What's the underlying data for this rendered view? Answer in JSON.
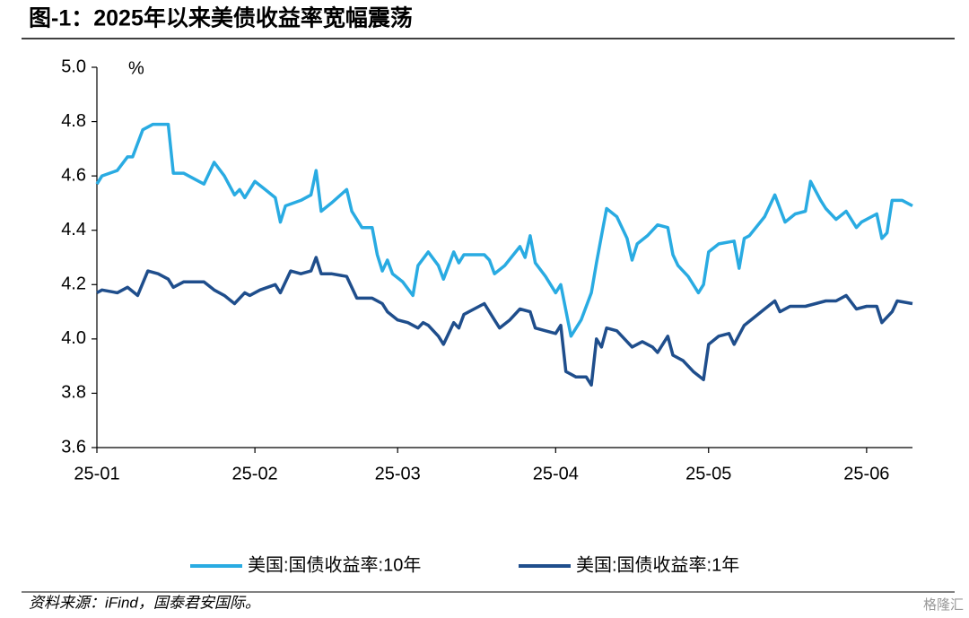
{
  "chart_data": {
    "type": "line",
    "title": "图-1：2025年以来美债收益率宽幅震荡",
    "y_unit_label": "%",
    "source": "资料来源：iFind，国泰君安国际。",
    "watermark": "格隆汇",
    "xlim": [
      0,
      160
    ],
    "xticks": [
      {
        "value": 0,
        "label": "25-01"
      },
      {
        "value": 31,
        "label": "25-02"
      },
      {
        "value": 59,
        "label": "25-03"
      },
      {
        "value": 90,
        "label": "25-04"
      },
      {
        "value": 120,
        "label": "25-05"
      },
      {
        "value": 151,
        "label": "25-06"
      }
    ],
    "ylim": [
      3.6,
      5.0
    ],
    "yticks": [
      3.6,
      3.8,
      {
        "value": 4.0,
        "label": "4.0"
      },
      4.2,
      4.4,
      4.6,
      4.8,
      {
        "value": 5.0,
        "label": "5.0"
      }
    ],
    "grid": false,
    "legend": "bottom",
    "series": [
      {
        "name": "美国:国债收益率:10年",
        "color": "#29abe2",
        "x": [
          0,
          1,
          4,
          6,
          7,
          9,
          11,
          14,
          15,
          17,
          20,
          21,
          23,
          25,
          27,
          28,
          29,
          31,
          33,
          35,
          36,
          37,
          40,
          42,
          43,
          44,
          46,
          49,
          50,
          52,
          54,
          55,
          56,
          57,
          58,
          60,
          62,
          63,
          65,
          67,
          68,
          70,
          71,
          72,
          74,
          76,
          77,
          78,
          80,
          83,
          84,
          85,
          86,
          88,
          90,
          91,
          93,
          95,
          97,
          98,
          99,
          100,
          102,
          104,
          105,
          106,
          108,
          110,
          112,
          113,
          114,
          116,
          118,
          119,
          120,
          122,
          125,
          126,
          127,
          128,
          131,
          133,
          135,
          137,
          139,
          140,
          142,
          143,
          145,
          147,
          149,
          150,
          153,
          154,
          155,
          156,
          158,
          160
        ],
        "values": [
          4.57,
          4.6,
          4.62,
          4.67,
          4.67,
          4.77,
          4.79,
          4.79,
          4.61,
          4.61,
          4.58,
          4.57,
          4.65,
          4.6,
          4.53,
          4.55,
          4.52,
          4.58,
          4.55,
          4.52,
          4.43,
          4.49,
          4.51,
          4.53,
          4.62,
          4.47,
          4.5,
          4.55,
          4.47,
          4.41,
          4.41,
          4.31,
          4.25,
          4.29,
          4.24,
          4.21,
          4.16,
          4.27,
          4.32,
          4.27,
          4.22,
          4.32,
          4.28,
          4.31,
          4.31,
          4.31,
          4.29,
          4.24,
          4.27,
          4.34,
          4.3,
          4.38,
          4.28,
          4.23,
          4.17,
          4.2,
          4.01,
          4.07,
          4.17,
          4.28,
          4.38,
          4.48,
          4.45,
          4.37,
          4.29,
          4.35,
          4.38,
          4.42,
          4.41,
          4.31,
          4.27,
          4.23,
          4.17,
          4.2,
          4.32,
          4.35,
          4.36,
          4.26,
          4.37,
          4.38,
          4.45,
          4.53,
          4.43,
          4.46,
          4.47,
          4.58,
          4.51,
          4.48,
          4.44,
          4.47,
          4.41,
          4.43,
          4.46,
          4.37,
          4.39,
          4.51,
          4.51,
          4.49
        ]
      },
      {
        "name": "美国:国债收益率:1年",
        "color": "#1f4e8c",
        "x": [
          0,
          1,
          4,
          6,
          8,
          10,
          12,
          14,
          15,
          17,
          19,
          21,
          23,
          25,
          27,
          29,
          30,
          32,
          35,
          36,
          38,
          40,
          42,
          43,
          44,
          46,
          49,
          51,
          53,
          54,
          56,
          57,
          59,
          61,
          63,
          64,
          65,
          67,
          68,
          70,
          71,
          72,
          74,
          76,
          78,
          79,
          81,
          83,
          85,
          86,
          88,
          90,
          91,
          92,
          94,
          96,
          97,
          98,
          99,
          100,
          102,
          104,
          105,
          107,
          109,
          110,
          112,
          113,
          115,
          117,
          119,
          120,
          122,
          124,
          125,
          127,
          129,
          131,
          133,
          134,
          136,
          139,
          141,
          143,
          145,
          147,
          149,
          151,
          153,
          154,
          156,
          157,
          160
        ],
        "values": [
          4.17,
          4.18,
          4.17,
          4.19,
          4.16,
          4.25,
          4.24,
          4.22,
          4.19,
          4.21,
          4.21,
          4.21,
          4.18,
          4.16,
          4.13,
          4.17,
          4.16,
          4.18,
          4.2,
          4.17,
          4.25,
          4.24,
          4.25,
          4.3,
          4.24,
          4.24,
          4.23,
          4.15,
          4.15,
          4.15,
          4.13,
          4.1,
          4.07,
          4.06,
          4.04,
          4.06,
          4.05,
          4.01,
          3.98,
          4.06,
          4.04,
          4.09,
          4.11,
          4.13,
          4.07,
          4.04,
          4.07,
          4.11,
          4.1,
          4.04,
          4.03,
          4.02,
          4.05,
          3.88,
          3.86,
          3.86,
          3.83,
          4.0,
          3.97,
          4.04,
          4.03,
          3.99,
          3.97,
          3.99,
          3.97,
          3.95,
          4.01,
          3.94,
          3.92,
          3.88,
          3.85,
          3.98,
          4.01,
          4.02,
          3.98,
          4.05,
          4.08,
          4.11,
          4.14,
          4.1,
          4.12,
          4.12,
          4.13,
          4.14,
          4.14,
          4.16,
          4.11,
          4.12,
          4.12,
          4.06,
          4.1,
          4.14,
          4.13
        ]
      }
    ]
  }
}
